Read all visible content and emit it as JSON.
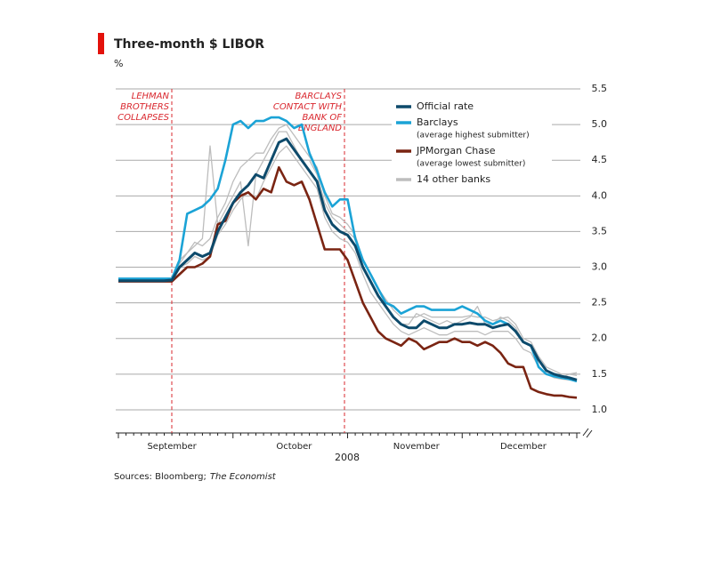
{
  "chart_data": {
    "type": "line",
    "title": "Three-month $ LIBOR",
    "subtitle": "%",
    "xlabel": "2008",
    "source_prefix": "Sources: Bloomberg;",
    "source_name": "The Economist",
    "annotations": [
      [
        "LEHMAN",
        "BROTHERS",
        "COLLAPSES"
      ],
      [
        "BARCLAYS",
        "CONTACT WITH",
        "BANK OF",
        "ENGLAND"
      ]
    ],
    "categories": [
      null,
      null,
      null,
      null,
      null,
      null,
      null,
      "September",
      null,
      null,
      null,
      null,
      null,
      null,
      null,
      null,
      null,
      null,
      null,
      null,
      null,
      null,
      null,
      "October",
      null,
      null,
      null,
      null,
      null,
      null,
      null,
      null,
      null,
      null,
      null,
      null,
      null,
      null,
      null,
      "November",
      null,
      null,
      null,
      null,
      null,
      null,
      null,
      null,
      null,
      null,
      null,
      null,
      null,
      "December",
      null,
      null,
      null,
      null,
      null,
      null,
      null
    ],
    "ylim": [
      0.7,
      5.5
    ],
    "yticks": [
      {
        "value": 1,
        "label": "1.0"
      },
      1.5,
      {
        "value": 2,
        "label": "2.0"
      },
      2.5,
      {
        "value": 3,
        "label": "3.0"
      },
      3.5,
      {
        "value": 4,
        "label": "4.0"
      },
      4.5,
      {
        "value": 5,
        "label": "5.0"
      },
      5.5
    ],
    "grid": true,
    "series": [
      {
        "name": "Official rate",
        "color": "#0d4a6b",
        "values": [
          2.81,
          2.81,
          2.81,
          2.81,
          2.81,
          2.81,
          2.81,
          2.82,
          3.0,
          3.1,
          3.2,
          3.15,
          3.2,
          3.5,
          3.7,
          3.9,
          4.05,
          4.15,
          4.3,
          4.25,
          4.5,
          4.75,
          4.8,
          4.65,
          4.5,
          4.35,
          4.2,
          3.8,
          3.6,
          3.5,
          3.45,
          3.3,
          3.0,
          2.8,
          2.6,
          2.45,
          2.3,
          2.2,
          2.15,
          2.15,
          2.25,
          2.2,
          2.15,
          2.15,
          2.2,
          2.2,
          2.22,
          2.2,
          2.2,
          2.15,
          2.18,
          2.2,
          2.1,
          1.95,
          1.9,
          1.7,
          1.55,
          1.5,
          1.47,
          1.45,
          1.42
        ]
      },
      {
        "name": "Barclays",
        "subtitle": "(average highest submitter)",
        "color": "#1ba3d6",
        "values": [
          2.84,
          2.84,
          2.84,
          2.84,
          2.84,
          2.84,
          2.84,
          2.84,
          3.1,
          3.75,
          3.8,
          3.85,
          3.95,
          4.1,
          4.5,
          5.0,
          5.05,
          4.95,
          5.05,
          5.05,
          5.1,
          5.1,
          5.05,
          4.95,
          5.0,
          4.6,
          4.35,
          4.05,
          3.85,
          3.95,
          3.95,
          3.4,
          3.1,
          2.9,
          2.7,
          2.5,
          2.45,
          2.35,
          2.4,
          2.45,
          2.45,
          2.4,
          2.4,
          2.4,
          2.4,
          2.45,
          2.4,
          2.35,
          2.25,
          2.2,
          2.25,
          2.2,
          2.1,
          1.95,
          1.9,
          1.6,
          1.5,
          1.47,
          1.45,
          1.43,
          1.4
        ]
      },
      {
        "name": "JPMorgan Chase",
        "subtitle": "(average lowest submitter)",
        "color": "#7a2412",
        "values": [
          2.8,
          2.8,
          2.8,
          2.8,
          2.8,
          2.8,
          2.8,
          2.8,
          2.9,
          3.0,
          3.0,
          3.05,
          3.15,
          3.6,
          3.65,
          3.9,
          4.0,
          4.05,
          3.95,
          4.1,
          4.05,
          4.4,
          4.2,
          4.15,
          4.2,
          3.95,
          3.6,
          3.25,
          3.25,
          3.25,
          3.1,
          2.8,
          2.5,
          2.3,
          2.1,
          2.0,
          1.95,
          1.9,
          2.0,
          1.95,
          1.85,
          1.9,
          1.95,
          1.95,
          2.0,
          1.95,
          1.95,
          1.9,
          1.95,
          1.9,
          1.8,
          1.65,
          1.6,
          1.6,
          1.3,
          1.25,
          1.22,
          1.2,
          1.2,
          1.18,
          1.17
        ]
      },
      {
        "name": "14 other banks",
        "color": "#bdbdbd",
        "lines": [
          [
            2.82,
            2.82,
            2.82,
            2.82,
            2.82,
            2.82,
            2.82,
            2.82,
            3.1,
            3.2,
            3.35,
            3.3,
            3.4,
            3.7,
            3.9,
            4.2,
            4.4,
            4.5,
            4.6,
            4.6,
            4.8,
            4.95,
            5.0,
            4.85,
            4.7,
            4.55,
            4.4,
            4.0,
            3.75,
            3.7,
            3.6,
            3.45,
            3.1,
            2.9,
            2.7,
            2.55,
            2.4,
            2.3,
            2.3,
            2.3,
            2.35,
            2.3,
            2.3,
            2.3,
            2.3,
            2.3,
            2.32,
            2.3,
            2.3,
            2.25,
            2.28,
            2.3,
            2.2,
            2.0,
            1.95,
            1.75,
            1.6,
            1.55,
            1.5,
            1.5,
            1.48
          ],
          [
            2.8,
            2.8,
            2.8,
            2.8,
            2.8,
            2.8,
            2.8,
            2.8,
            3.0,
            3.05,
            3.15,
            3.1,
            3.15,
            3.45,
            3.6,
            3.8,
            3.95,
            4.05,
            3.95,
            4.2,
            4.4,
            4.6,
            4.7,
            4.55,
            4.4,
            4.25,
            4.1,
            3.7,
            3.5,
            3.4,
            3.35,
            3.2,
            2.9,
            2.65,
            2.5,
            2.35,
            2.2,
            2.1,
            2.05,
            2.1,
            2.15,
            2.1,
            2.05,
            2.05,
            2.1,
            2.1,
            2.1,
            2.1,
            2.05,
            2.1,
            2.1,
            2.1,
            2.0,
            1.85,
            1.8,
            1.6,
            1.5,
            1.45,
            1.43,
            1.42,
            1.4
          ],
          [
            2.83,
            2.83,
            2.83,
            2.83,
            2.83,
            2.83,
            2.83,
            2.83,
            3.05,
            3.2,
            3.3,
            3.4,
            4.7,
            3.6,
            3.8,
            4.0,
            4.2,
            3.3,
            4.3,
            4.5,
            4.7,
            4.9,
            4.9,
            4.7,
            4.5,
            4.5,
            4.3,
            3.9,
            3.7,
            3.6,
            3.5,
            3.4,
            3.0,
            2.8,
            2.6,
            2.45,
            2.3,
            2.2,
            2.2,
            2.35,
            2.3,
            2.25,
            2.2,
            2.25,
            2.2,
            2.25,
            2.3,
            2.45,
            2.2,
            2.2,
            2.3,
            2.25,
            2.15,
            1.95,
            1.9,
            1.7,
            1.55,
            1.5,
            1.45,
            1.5,
            1.52
          ]
        ]
      }
    ]
  }
}
